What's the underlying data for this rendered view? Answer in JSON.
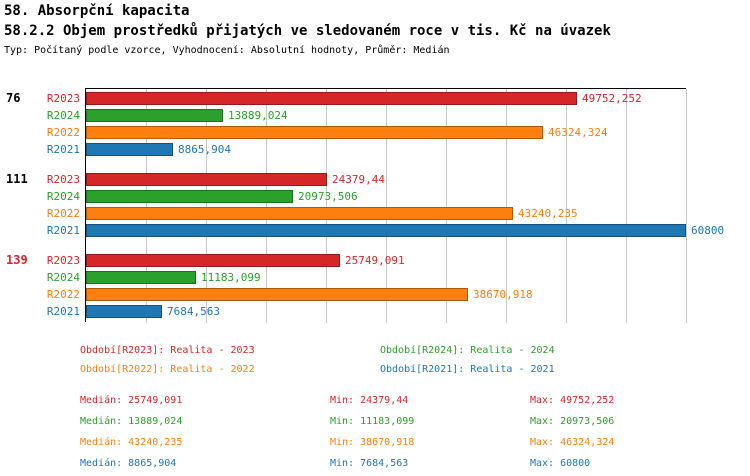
{
  "title": "58. Absorpční kapacita",
  "subtitle": "58.2.2 Objem prostředků přijatých ve sledovaném roce v tis. Kč na úvazek",
  "meta": "Typ: Počítaný podle vzorce, Vyhodnocení: Absolutní hodnoty, Průměr: Medián",
  "series_colors": {
    "R2023": "#d62728",
    "R2024": "#2ca02c",
    "R2022": "#ff7f0e",
    "R2021": "#1f77b4"
  },
  "chart_data": {
    "type": "bar",
    "orientation": "horizontal",
    "xlim": [
      0,
      60800
    ],
    "grid": true,
    "series_order": [
      "R2023",
      "R2024",
      "R2022",
      "R2021"
    ],
    "groups": [
      {
        "label": "76",
        "label_color": "#000000",
        "bars": [
          {
            "series": "R2023",
            "value": 49752.252,
            "value_label": "49752,252"
          },
          {
            "series": "R2024",
            "value": 13889.024,
            "value_label": "13889,024"
          },
          {
            "series": "R2022",
            "value": 46324.324,
            "value_label": "46324,324"
          },
          {
            "series": "R2021",
            "value": 8865.904,
            "value_label": "8865,904"
          }
        ]
      },
      {
        "label": "111",
        "label_color": "#000000",
        "bars": [
          {
            "series": "R2023",
            "value": 24379.44,
            "value_label": "24379,44"
          },
          {
            "series": "R2024",
            "value": 20973.506,
            "value_label": "20973,506"
          },
          {
            "series": "R2022",
            "value": 43240.235,
            "value_label": "43240,235"
          },
          {
            "series": "R2021",
            "value": 60800,
            "value_label": "60800"
          }
        ]
      },
      {
        "label": "139",
        "label_color": "#d62728",
        "bars": [
          {
            "series": "R2023",
            "value": 25749.091,
            "value_label": "25749,091"
          },
          {
            "series": "R2024",
            "value": 11183.099,
            "value_label": "11183,099"
          },
          {
            "series": "R2022",
            "value": 38670.918,
            "value_label": "38670,918"
          },
          {
            "series": "R2021",
            "value": 7684.563,
            "value_label": "7684,563"
          }
        ]
      }
    ]
  },
  "legend": [
    {
      "series": "R2023",
      "label": "Období[R2023]: Realita - 2023"
    },
    {
      "series": "R2024",
      "label": "Období[R2024]: Realita - 2024"
    },
    {
      "series": "R2022",
      "label": "Období[R2022]: Realita - 2022"
    },
    {
      "series": "R2021",
      "label": "Období[R2021]: Realita - 2021"
    }
  ],
  "stats_labels": {
    "median": "Medián:",
    "min": "Min:",
    "max": "Max:"
  },
  "stats": [
    {
      "series": "R2023",
      "median": "25749,091",
      "min": "24379,44",
      "max": "49752,252"
    },
    {
      "series": "R2024",
      "median": "13889,024",
      "min": "11183,099",
      "max": "20973,506"
    },
    {
      "series": "R2022",
      "median": "43240,235",
      "min": "38670,918",
      "max": "46324,324"
    },
    {
      "series": "R2021",
      "median": "8865,904",
      "min": "7684,563",
      "max": "60800"
    }
  ]
}
